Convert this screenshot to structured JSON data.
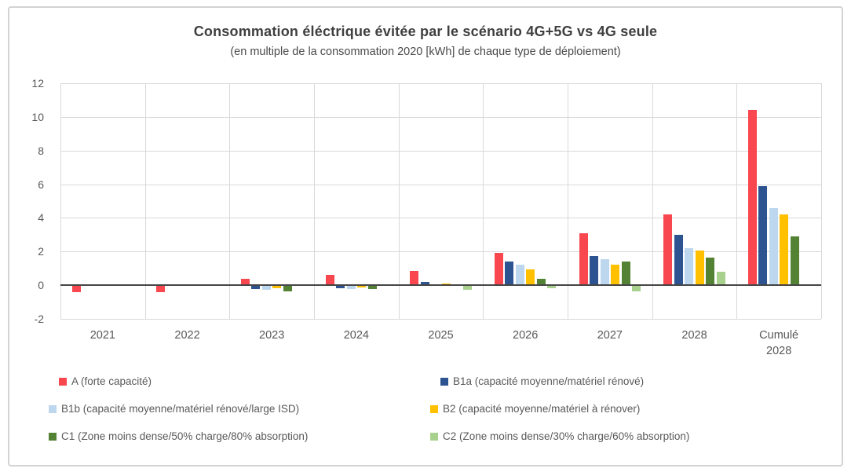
{
  "chart": {
    "title": "Consommation éléctrique évitée par le scénario 4G+5G vs 4G seule",
    "subtitle": "(en multiple de la consommation 2020 [kWh] de chaque type de déploiement)"
  },
  "chart_data": {
    "type": "bar",
    "title": "Consommation éléctrique évitée par le scénario 4G+5G vs 4G seule",
    "subtitle": "(en multiple de la consommation 2020 [kWh] de chaque type de déploiement)",
    "categories": [
      "2021",
      "2022",
      "2023",
      "2024",
      "2025",
      "2026",
      "2027",
      "2028",
      "Cumulé\n2028"
    ],
    "series": [
      {
        "key": "A",
        "name": "A (forte capacité)",
        "color": "#F8474F",
        "values": [
          -0.4,
          -0.4,
          0.4,
          0.6,
          0.85,
          1.9,
          3.1,
          4.2,
          10.4
        ]
      },
      {
        "key": "B1a",
        "name": "B1a (capacité moyenne/matériel rénové)",
        "color": "#2D5491",
        "values": [
          0,
          0,
          -0.25,
          -0.2,
          0.2,
          1.4,
          1.75,
          3.0,
          5.9
        ]
      },
      {
        "key": "B1b",
        "name": "B1b (capacité moyenne/matériel rénové/large ISD)",
        "color": "#BDD7EE",
        "values": [
          0,
          0,
          -0.3,
          -0.25,
          0.05,
          1.2,
          1.55,
          2.2,
          4.6
        ]
      },
      {
        "key": "B2",
        "name": "B2 (capacité moyenne/matériel à rénover)",
        "color": "#FFC000",
        "values": [
          0,
          0,
          -0.2,
          -0.15,
          0.1,
          0.95,
          1.2,
          2.05,
          4.2
        ]
      },
      {
        "key": "C1",
        "name": "C1 (Zone moins dense/50% charge/80% absorption)",
        "color": "#548235",
        "values": [
          0,
          0,
          -0.35,
          -0.25,
          0.05,
          0.4,
          1.4,
          1.65,
          2.9
        ]
      },
      {
        "key": "C2",
        "name": "C2 (Zone moins dense/30% charge/60% absorption)",
        "color": "#A9D18E",
        "values": [
          0,
          0,
          0,
          0,
          -0.3,
          -0.2,
          -0.35,
          0.8,
          -0.05
        ]
      }
    ],
    "ylim": [
      -2,
      12
    ],
    "yticks": [
      12,
      10,
      8,
      6,
      4,
      2,
      0,
      -2
    ],
    "ytick_interval": 2,
    "grid": true,
    "legend_position": "bottom"
  },
  "colors": {
    "gridline": "#D9D9D9",
    "axis_line": "#454545",
    "tick_text": "#595959",
    "title_text": "#3F3F3F",
    "frame_border": "#D3D3D3"
  }
}
